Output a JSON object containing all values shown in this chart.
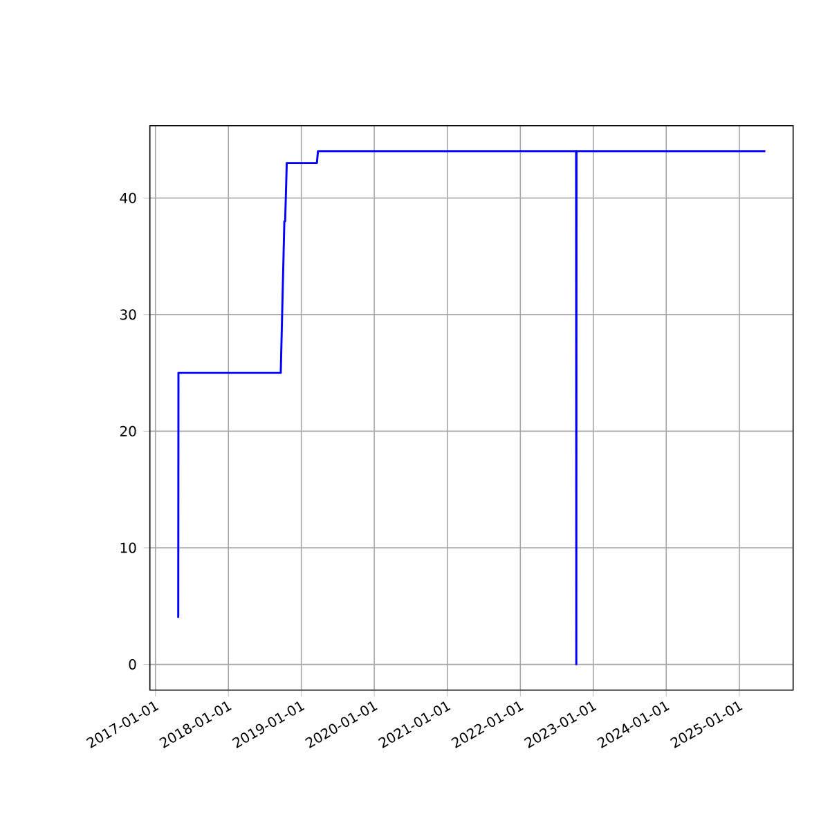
{
  "chart_data": {
    "type": "line",
    "x": [
      "2017-04-25",
      "2017-04-26",
      "2018-09-20",
      "2018-10-08",
      "2018-10-12",
      "2018-10-20",
      "2019-03-20",
      "2019-03-25",
      "2022-10-07",
      "2022-10-08",
      "2022-10-09",
      "2025-05-11"
    ],
    "series": [
      {
        "color": "#0000ff",
        "values": [
          4,
          25,
          25,
          38,
          38,
          43,
          43,
          44,
          44,
          0,
          44,
          44
        ]
      }
    ],
    "xlim": [
      "2016-12-04",
      "2025-09-27"
    ],
    "ylim": [
      -2.2,
      46.2
    ],
    "xticks": [
      "2017-01-01",
      "2018-01-01",
      "2019-01-01",
      "2020-01-01",
      "2021-01-01",
      "2022-01-01",
      "2023-01-01",
      "2024-01-01",
      "2025-01-01"
    ],
    "yticks": [
      0,
      10,
      20,
      30,
      40
    ],
    "grid": true,
    "marker": "none",
    "line_style": "solid"
  }
}
